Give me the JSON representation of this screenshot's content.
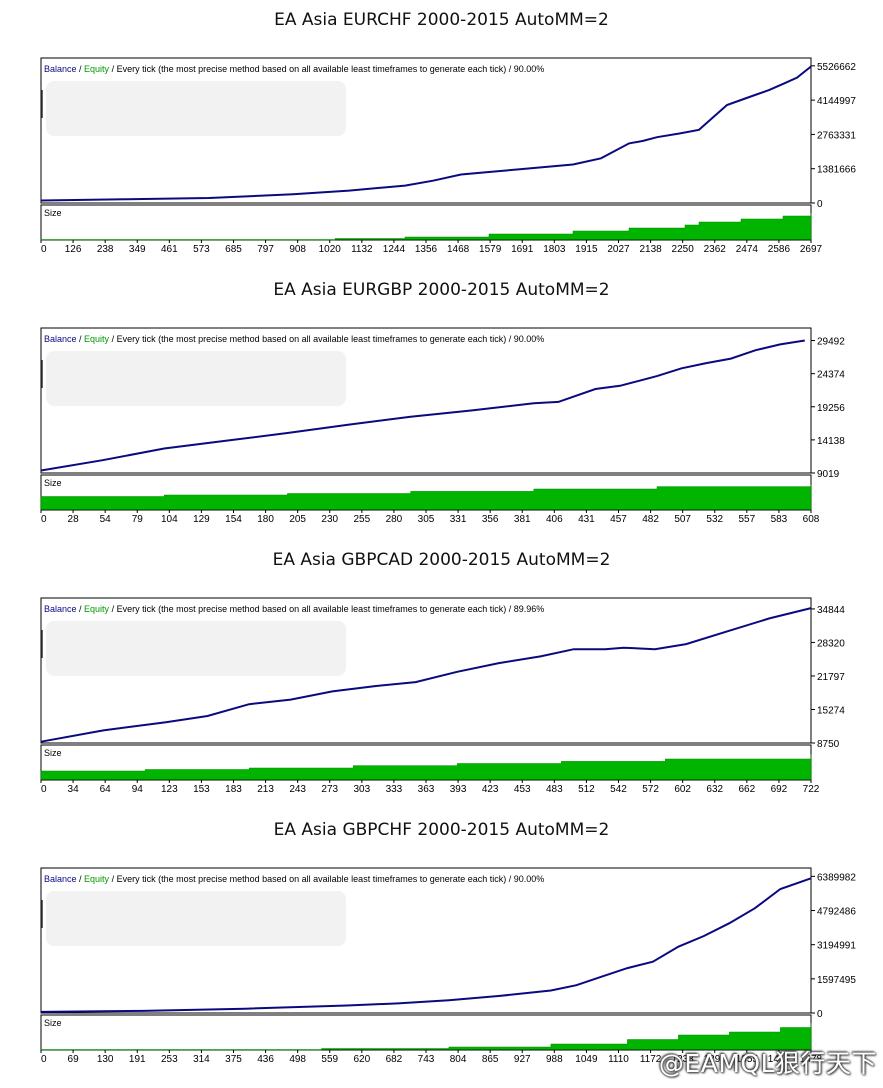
{
  "colors": {
    "balance": "#0a0a80",
    "equity": "#009900",
    "size_fill": "#00b400",
    "frame": "#000000",
    "grid_text": "#000000"
  },
  "legend": {
    "balance": "Balance",
    "sep1": " / ",
    "equity": "Equity",
    "mode": " / Every tick (the most precise method based on all available least timeframes to generate each tick)"
  },
  "size_label": "Size",
  "watermark": "@EAMQL狠行天下",
  "chart_data": [
    {
      "type": "line",
      "title": "EA Asia EURCHF 2000-2015 AutoMM=2",
      "quality": " / 90.00%",
      "y_ticks": [
        5526662,
        4144997,
        2763331,
        1381666,
        0
      ],
      "ylim": [
        0,
        5600000
      ],
      "x_ticks": [
        0,
        126,
        238,
        349,
        461,
        573,
        685,
        797,
        908,
        1020,
        1132,
        1244,
        1356,
        1468,
        1579,
        1691,
        1803,
        1915,
        2027,
        2138,
        2250,
        2362,
        2474,
        2586,
        2697
      ],
      "xlim": [
        0,
        2750
      ],
      "series": [
        {
          "x": [
            0,
            300,
            600,
            900,
            1100,
            1300,
            1400,
            1500,
            1600,
            1700,
            1800,
            1900,
            2000,
            2100,
            2150,
            2200,
            2280,
            2350,
            2400,
            2450,
            2500,
            2550,
            2600,
            2650,
            2700,
            2750
          ],
          "y": [
            100000,
            150000,
            200000,
            350000,
            500000,
            700000,
            900000,
            1150000,
            1250000,
            1350000,
            1450000,
            1550000,
            1800000,
            2400000,
            2500000,
            2650000,
            2800000,
            2950000,
            3450000,
            3950000,
            4150000,
            4350000,
            4550000,
            4800000,
            5050000,
            5500000
          ]
        }
      ],
      "size": {
        "x": [
          0,
          1000,
          1050,
          1300,
          1600,
          1900,
          2100,
          2300,
          2350,
          2500,
          2650,
          2750
        ],
        "y": [
          0,
          0,
          5,
          10,
          20,
          30,
          40,
          50,
          60,
          70,
          80,
          90
        ],
        "ylim": [
          0,
          100
        ]
      }
    },
    {
      "type": "line",
      "title": "EA Asia EURGBP 2000-2015 AutoMM=2",
      "quality": " / 90.00%",
      "y_ticks": [
        29492,
        24374,
        19256,
        14138,
        9019
      ],
      "ylim": [
        9019,
        30500
      ],
      "x_ticks": [
        0,
        28,
        54,
        79,
        104,
        129,
        154,
        180,
        205,
        230,
        255,
        280,
        305,
        331,
        356,
        381,
        406,
        431,
        457,
        482,
        507,
        532,
        557,
        583,
        608
      ],
      "xlim": [
        0,
        625
      ],
      "series": [
        {
          "x": [
            0,
            50,
            100,
            150,
            200,
            250,
            300,
            350,
            400,
            420,
            450,
            470,
            500,
            520,
            540,
            560,
            580,
            600,
            620
          ],
          "y": [
            9400,
            11000,
            12800,
            14000,
            15200,
            16500,
            17700,
            18700,
            19800,
            20000,
            22000,
            22500,
            24000,
            25200,
            26000,
            26700,
            28000,
            28900,
            29500
          ]
        }
      ],
      "size": {
        "x": [
          0,
          100,
          200,
          300,
          400,
          500,
          625
        ],
        "y": [
          45,
          50,
          55,
          62,
          70,
          78,
          85
        ],
        "ylim": [
          0,
          100
        ]
      }
    },
    {
      "type": "line",
      "title": "EA Asia GBPCAD 2000-2015 AutoMM=2",
      "quality": " / 89.96%",
      "y_ticks": [
        34844,
        28320,
        21797,
        15274,
        8750
      ],
      "ylim": [
        8750,
        35800
      ],
      "x_ticks": [
        0,
        34,
        64,
        94,
        123,
        153,
        183,
        213,
        243,
        273,
        303,
        333,
        363,
        393,
        423,
        453,
        483,
        512,
        542,
        572,
        602,
        632,
        662,
        692,
        722
      ],
      "xlim": [
        0,
        740
      ],
      "series": [
        {
          "x": [
            0,
            60,
            120,
            160,
            200,
            240,
            280,
            320,
            360,
            400,
            440,
            480,
            512,
            542,
            560,
            590,
            620,
            660,
            700,
            740
          ],
          "y": [
            9000,
            11200,
            12800,
            14000,
            16300,
            17200,
            18800,
            19800,
            20600,
            22600,
            24300,
            25600,
            27000,
            27000,
            27300,
            27000,
            28000,
            30500,
            33000,
            35000
          ]
        }
      ],
      "size": {
        "x": [
          0,
          100,
          200,
          300,
          400,
          500,
          600,
          740
        ],
        "y": [
          30,
          35,
          40,
          48,
          55,
          62,
          70,
          85
        ],
        "ylim": [
          0,
          100
        ]
      }
    },
    {
      "type": "line",
      "title": "EA Asia GBPCHF 2000-2015 AutoMM=2",
      "quality": " / 90.00%",
      "y_ticks": [
        6389982,
        4792486,
        3194991,
        1597495,
        0
      ],
      "ylim": [
        0,
        6500000
      ],
      "x_ticks": [
        0,
        69,
        130,
        191,
        253,
        314,
        375,
        436,
        498,
        559,
        620,
        682,
        743,
        804,
        865,
        927,
        988,
        1049,
        1110,
        1172,
        1233,
        1294,
        1355,
        1417,
        1478
      ],
      "xlim": [
        0,
        1510
      ],
      "series": [
        {
          "x": [
            0,
            200,
            400,
            600,
            700,
            800,
            900,
            1000,
            1050,
            1100,
            1150,
            1200,
            1250,
            1300,
            1350,
            1400,
            1450,
            1510
          ],
          "y": [
            50000,
            100000,
            200000,
            350000,
            450000,
            600000,
            800000,
            1050000,
            1300000,
            1700000,
            2100000,
            2400000,
            3100000,
            3600000,
            4200000,
            4900000,
            5800000,
            6300000
          ]
        }
      ],
      "size": {
        "x": [
          0,
          500,
          550,
          800,
          1000,
          1150,
          1250,
          1350,
          1450,
          1510
        ],
        "y": [
          0,
          0,
          5,
          10,
          20,
          35,
          50,
          60,
          75,
          90
        ],
        "ylim": [
          0,
          100
        ]
      }
    }
  ]
}
